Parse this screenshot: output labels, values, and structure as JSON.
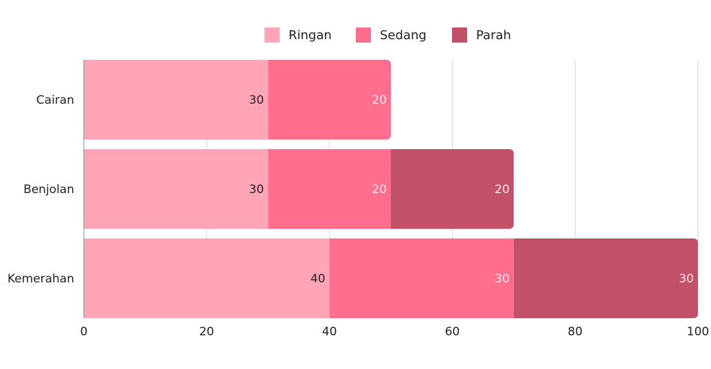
{
  "chart_data": {
    "type": "bar",
    "orientation": "horizontal",
    "stacked": true,
    "title": "",
    "xlabel": "",
    "ylabel": "",
    "categories": [
      "Cairan",
      "Benjolan",
      "Kemerahan"
    ],
    "series": [
      {
        "name": "Ringan",
        "color": "#ffa5b7",
        "label_color": "#222222",
        "values": [
          30,
          30,
          40
        ]
      },
      {
        "name": "Sedang",
        "color": "#ff6e8d",
        "label_color": "#ffe6ec",
        "values": [
          20,
          20,
          30
        ]
      },
      {
        "name": "Parah",
        "color": "#c25068",
        "label_color": "#ffe6ec",
        "values": [
          null,
          20,
          30
        ]
      }
    ],
    "xlim": [
      0,
      100
    ],
    "xticks": [
      0,
      20,
      40,
      60,
      80,
      100
    ],
    "grid": true,
    "legend": "top-center"
  }
}
